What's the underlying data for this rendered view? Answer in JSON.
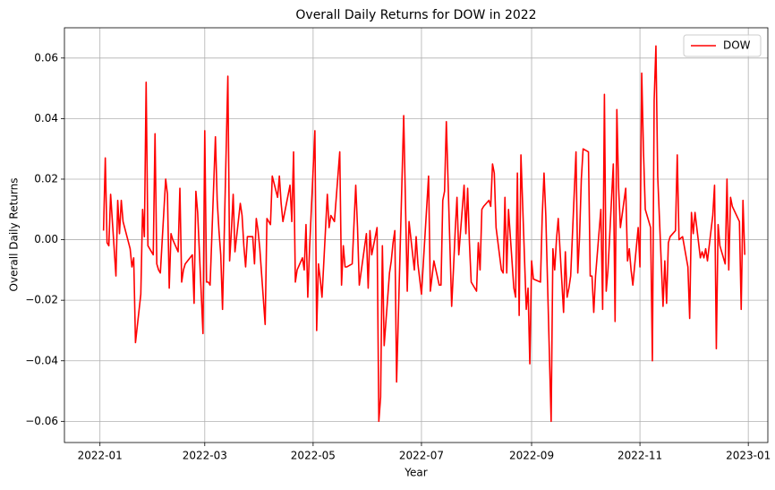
{
  "chart_data": {
    "type": "line",
    "title": "Overall Daily Returns for DOW in 2022",
    "xlabel": "Year",
    "ylabel": "Overall Daily Returns",
    "x": [
      2,
      3,
      4,
      5,
      6,
      9,
      10,
      11,
      12,
      13,
      17,
      18,
      19,
      20,
      23,
      24,
      25,
      26,
      27,
      30,
      31,
      32,
      33,
      34,
      37,
      38,
      39,
      40,
      41,
      44,
      45,
      46,
      47,
      48,
      52,
      53,
      54,
      55,
      58,
      59,
      60,
      61,
      62,
      65,
      66,
      67,
      68,
      69,
      72,
      73,
      74,
      75,
      76,
      79,
      80,
      81,
      82,
      83,
      86,
      87,
      88,
      89,
      90,
      93,
      94,
      95,
      96,
      97,
      100,
      101,
      102,
      103,
      107,
      108,
      109,
      110,
      111,
      114,
      115,
      116,
      117,
      118,
      121,
      122,
      123,
      124,
      125,
      128,
      129,
      130,
      131,
      132,
      135,
      136,
      137,
      138,
      139,
      142,
      143,
      144,
      145,
      146,
      150,
      151,
      152,
      153,
      156,
      157,
      158,
      159,
      160,
      163,
      164,
      165,
      166,
      167,
      171,
      172,
      173,
      174,
      177,
      178,
      179,
      180,
      181,
      185,
      186,
      187,
      188,
      191,
      192,
      193,
      194,
      195,
      198,
      199,
      200,
      201,
      202,
      205,
      206,
      207,
      208,
      209,
      212,
      213,
      214,
      215,
      216,
      219,
      220,
      221,
      222,
      223,
      226,
      227,
      228,
      229,
      230,
      233,
      234,
      235,
      236,
      237,
      240,
      241,
      242,
      243,
      244,
      248,
      249,
      250,
      251,
      254,
      255,
      256,
      257,
      258,
      261,
      262,
      263,
      264,
      265,
      268,
      269,
      270,
      271,
      272,
      275,
      276,
      277,
      278,
      279,
      282,
      283,
      284,
      285,
      286,
      289,
      290,
      291,
      292,
      293,
      296,
      297,
      298,
      299,
      300,
      303,
      304,
      305,
      306,
      307,
      310,
      311,
      312,
      313,
      314,
      317,
      318,
      319,
      320,
      321,
      324,
      325,
      326,
      328,
      331,
      332,
      333,
      334,
      335,
      338,
      339,
      340,
      341,
      342,
      345,
      346,
      347,
      348,
      349,
      352,
      353,
      354,
      355,
      356,
      360,
      361,
      362,
      363
    ],
    "series": [
      {
        "name": "DOW",
        "color": "#ff0000",
        "values": [
          0.003,
          0.027,
          -0.001,
          -0.002,
          0.015,
          -0.012,
          0.013,
          0.002,
          0.013,
          0.006,
          -0.003,
          -0.009,
          -0.006,
          -0.034,
          -0.018,
          0.01,
          0.001,
          0.052,
          -0.002,
          -0.005,
          0.035,
          -0.008,
          -0.01,
          -0.011,
          0.02,
          0.015,
          -0.016,
          0.002,
          0.0,
          -0.004,
          0.017,
          -0.014,
          -0.01,
          -0.008,
          -0.005,
          -0.021,
          0.016,
          0.009,
          -0.031,
          0.036,
          -0.014,
          -0.014,
          -0.015,
          0.034,
          0.013,
          0.003,
          -0.005,
          -0.023,
          0.054,
          -0.007,
          0.003,
          0.015,
          -0.004,
          0.012,
          0.008,
          -0.002,
          -0.009,
          0.001,
          0.001,
          -0.008,
          0.007,
          0.003,
          -0.003,
          -0.028,
          0.007,
          0.006,
          0.005,
          0.021,
          0.014,
          0.021,
          0.012,
          0.006,
          0.018,
          0.006,
          0.029,
          -0.014,
          -0.01,
          -0.006,
          -0.01,
          0.005,
          -0.019,
          -0.003,
          0.036,
          -0.03,
          -0.008,
          -0.013,
          -0.019,
          0.015,
          0.004,
          0.008,
          0.007,
          0.006,
          0.029,
          -0.015,
          -0.002,
          -0.009,
          -0.009,
          -0.008,
          0.005,
          0.018,
          0.004,
          -0.015,
          0.002,
          -0.016,
          0.003,
          -0.005,
          0.004,
          -0.06,
          -0.052,
          -0.002,
          -0.035,
          -0.011,
          -0.007,
          -0.001,
          0.003,
          -0.047,
          0.041,
          0.012,
          -0.017,
          0.006,
          -0.01,
          0.001,
          -0.008,
          -0.013,
          -0.018,
          0.021,
          -0.017,
          -0.012,
          -0.007,
          -0.015,
          -0.015,
          0.013,
          0.016,
          0.039,
          -0.022,
          -0.01,
          0.003,
          0.014,
          -0.005,
          0.018,
          0.002,
          0.017,
          -0.001,
          -0.014,
          -0.017,
          -0.001,
          -0.01,
          0.01,
          0.011,
          0.013,
          0.011,
          0.025,
          0.022,
          0.004,
          -0.01,
          -0.011,
          0.014,
          -0.011,
          0.01,
          -0.016,
          -0.019,
          0.022,
          -0.025,
          0.028,
          -0.023,
          -0.016,
          -0.041,
          -0.007,
          -0.013,
          -0.014,
          0.008,
          0.022,
          0.008,
          -0.06,
          -0.003,
          -0.01,
          0.0,
          0.007,
          -0.024,
          -0.004,
          -0.019,
          -0.016,
          -0.012,
          0.029,
          -0.011,
          0.001,
          0.02,
          0.03,
          0.029,
          -0.012,
          -0.012,
          -0.024,
          -0.012,
          0.01,
          -0.023,
          0.048,
          -0.017,
          -0.01,
          0.025,
          -0.027,
          0.043,
          0.017,
          0.004,
          0.017,
          -0.007,
          -0.003,
          -0.01,
          -0.015,
          0.004,
          -0.009,
          0.055,
          0.029,
          0.01,
          0.004,
          -0.04,
          0.046,
          0.064,
          0.021,
          -0.022,
          -0.007,
          -0.021,
          -0.001,
          0.001,
          0.003,
          0.028,
          0.0,
          0.001,
          -0.009,
          -0.026,
          0.009,
          0.002,
          0.009,
          -0.006,
          -0.004,
          -0.006,
          -0.003,
          -0.007,
          0.008,
          0.018,
          -0.036,
          0.005,
          -0.002,
          -0.008,
          0.02,
          -0.01,
          0.014,
          0.011,
          0.006,
          -0.023,
          0.013,
          -0.005
        ]
      }
    ],
    "xlim": [
      -20,
      376
    ],
    "xticks": [
      {
        "value": 0,
        "label": "2022-01"
      },
      {
        "value": 59,
        "label": "2022-03"
      },
      {
        "value": 120,
        "label": "2022-05"
      },
      {
        "value": 181,
        "label": "2022-07"
      },
      {
        "value": 243,
        "label": "2022-09"
      },
      {
        "value": 304,
        "label": "2022-11"
      },
      {
        "value": 365,
        "label": "2023-01"
      }
    ],
    "ylim": [
      -0.067,
      0.07
    ],
    "yticks": [
      {
        "value": -0.06,
        "label": "−0.06"
      },
      {
        "value": -0.04,
        "label": "−0.04"
      },
      {
        "value": -0.02,
        "label": "−0.02"
      },
      {
        "value": 0,
        "label": "0.00"
      },
      0.02,
      0.04,
      0.06
    ],
    "grid": true,
    "legend": "upper right"
  }
}
